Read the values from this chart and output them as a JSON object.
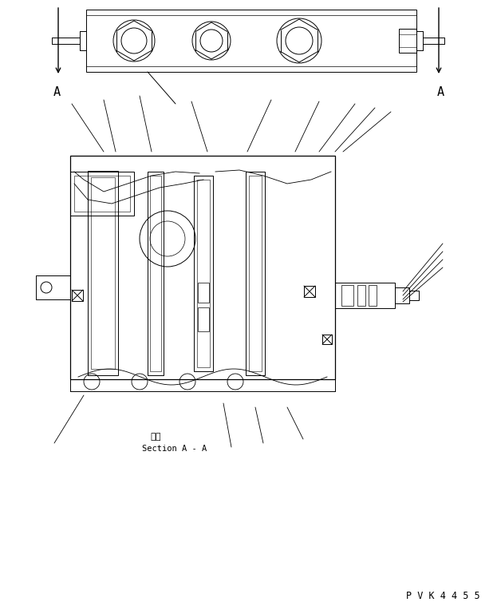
{
  "background_color": "#ffffff",
  "line_color": "#000000",
  "fig_width": 6.23,
  "fig_height": 7.69,
  "dpi": 100,
  "section_label": "Section A - A",
  "section_label_jp": "断面",
  "drawing_id": "P V K 4 4 5 5",
  "A_label": "A"
}
